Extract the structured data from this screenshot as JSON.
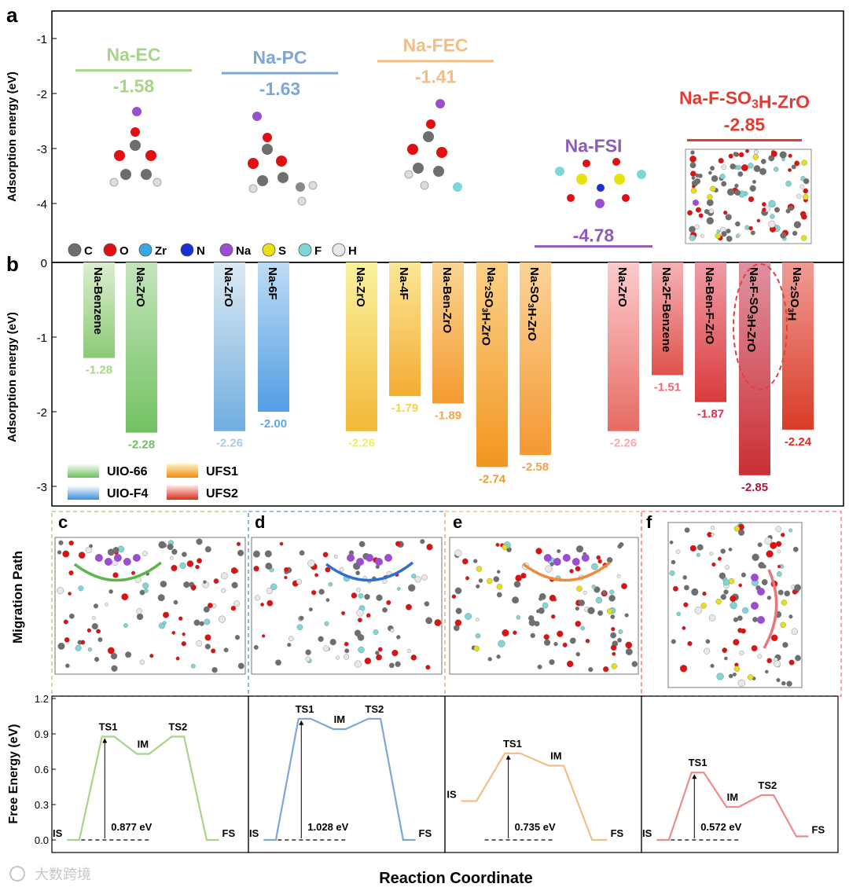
{
  "panel_a": {
    "label": "a",
    "ylabel": "Adsorption energy (eV)",
    "yticks": [
      "-1",
      "-2",
      "-3",
      "-4"
    ],
    "legend_atoms": [
      {
        "sym": "C",
        "color": "#6e6e6e"
      },
      {
        "sym": "O",
        "color": "#e01010"
      },
      {
        "sym": "Zr",
        "color": "#3aa8e0"
      },
      {
        "sym": "N",
        "color": "#1c2fd0"
      },
      {
        "sym": "Na",
        "color": "#9b4fd0"
      },
      {
        "sym": "S",
        "color": "#e8e010"
      },
      {
        "sym": "F",
        "color": "#7fd6d6"
      },
      {
        "sym": "H",
        "color": "#e8e8e8"
      }
    ]
  },
  "panel_b": {
    "label": "b",
    "ylabel": "Adsorption energy (eV)",
    "yticks": [
      "0",
      "-1",
      "-2",
      "-3"
    ],
    "legend": [
      "UIO-66",
      "UIO-F4",
      "UFS1",
      "UFS2"
    ]
  },
  "path_panels": {
    "ylabel": "Migration Path",
    "labels": [
      "c",
      "d",
      "e",
      "f"
    ]
  },
  "energy_panels": {
    "ylabel": "Free Energy (eV)",
    "xlabel": "Reaction Coordinate",
    "yticks": [
      "0.0",
      "0.3",
      "0.6",
      "0.9",
      "1.2"
    ]
  },
  "watermark": "大数跨境",
  "chart_data": [
    {
      "type": "bar",
      "panel": "a",
      "title": "",
      "ylabel": "Adsorption energy (eV)",
      "ylim": [
        -4.8,
        -0.5
      ],
      "categories": [
        "Na-EC",
        "Na-PC",
        "Na-FEC",
        "Na-FSI",
        "Na-F-SO3H-ZrO"
      ],
      "values": [
        -1.58,
        -1.63,
        -1.41,
        -4.78,
        -2.85
      ],
      "value_labels": [
        "-1.58",
        "-1.63",
        "-1.41",
        "-4.78",
        "-2.85"
      ],
      "colors": [
        "#a8d48a",
        "#7ea6d8",
        "#f5bd86",
        "#8d5bb8",
        "#e43a30"
      ]
    },
    {
      "type": "bar",
      "panel": "b",
      "ylabel": "Adsorption energy (eV)",
      "ylim": [
        -3.3,
        0
      ],
      "categories": [
        "Na-Benzene",
        "Na-ZrO",
        "Na-ZrO",
        "Na-6F",
        "Na-ZrO",
        "Na-4F",
        "Na-Ben-ZrO",
        "Na-2SO3H-ZrO",
        "Na-SO3H-ZrO",
        "Na-ZrO",
        "Na-2F-Benzene",
        "Na-Ben-F-ZrO",
        "Na-F-SO3H-ZrO",
        "Na-2SO3H"
      ],
      "values": [
        -1.28,
        -2.28,
        -2.26,
        -2.0,
        -2.26,
        -1.79,
        -1.89,
        -2.74,
        -2.58,
        -2.26,
        -1.51,
        -1.87,
        -2.85,
        -2.24
      ],
      "value_labels": [
        "-1.28",
        "-2.28",
        "-2.26",
        "-2.00",
        "-2.26",
        "-1.79",
        "-1.89",
        "-2.74",
        "-2.58",
        "-2.26",
        "-1.51",
        "-1.87",
        "-2.85",
        "-2.24"
      ],
      "groups": [
        "UIO-66",
        "UIO-66",
        "UIO-F4",
        "UIO-F4",
        "UFS1",
        "UFS1",
        "UFS1",
        "UFS1",
        "UFS1",
        "UFS2",
        "UFS2",
        "UFS2",
        "UFS2",
        "UFS2"
      ],
      "colors": [
        "#a8d48a",
        "#6cbf5a",
        "#a9cce0",
        "#5ea8e6",
        "#f2ee5a",
        "#f5d24a",
        "#f5a545",
        "#f29a20",
        "#f5a14a",
        "#f7a8ad",
        "#e76a76",
        "#d8324e",
        "#b0163c",
        "#d8321e"
      ]
    },
    {
      "type": "line",
      "panel": "c",
      "ylim": [
        0,
        1.2
      ],
      "states": [
        "IS",
        "TS1",
        "IM",
        "TS2",
        "FS"
      ],
      "values": [
        0.0,
        0.877,
        0.73,
        0.877,
        0.0
      ],
      "barrier": "0.877 eV",
      "color": "#a8d48a"
    },
    {
      "type": "line",
      "panel": "d",
      "ylim": [
        0,
        1.2
      ],
      "states": [
        "IS",
        "TS1",
        "IM",
        "TS2",
        "FS"
      ],
      "values": [
        0.0,
        1.028,
        0.94,
        1.028,
        0.0
      ],
      "barrier": "1.028 eV",
      "color": "#7ea6d8"
    },
    {
      "type": "line",
      "panel": "e",
      "ylim": [
        0,
        1.2
      ],
      "states": [
        "IS",
        "TS1",
        "IM",
        "FS"
      ],
      "values": [
        0.33,
        0.735,
        0.63,
        0.0
      ],
      "barrier": "0.735 eV",
      "color": "#f5bd86"
    },
    {
      "type": "line",
      "panel": "f",
      "ylim": [
        0,
        1.2
      ],
      "states": [
        "IS",
        "TS1",
        "IM",
        "TS2",
        "FS"
      ],
      "values": [
        0.0,
        0.572,
        0.28,
        0.38,
        0.03
      ],
      "barrier": "0.572 eV",
      "color": "#ef8a8a"
    }
  ]
}
